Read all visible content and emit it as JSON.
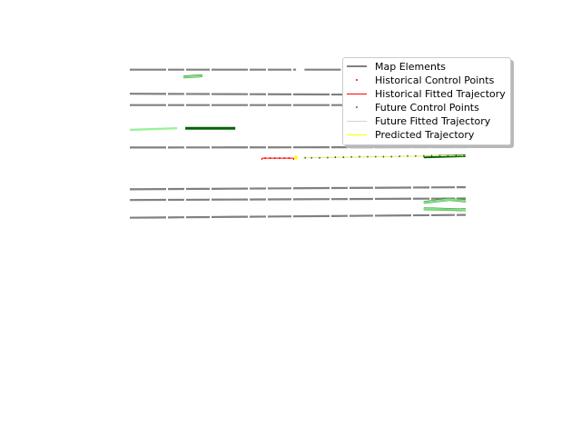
{
  "chart_data": {
    "type": "scatter",
    "title": "",
    "xlabel": "",
    "ylabel": "",
    "axes_visible": false,
    "xlim": [
      0,
      100
    ],
    "ylim": [
      0,
      100
    ],
    "grid": false,
    "legend": {
      "placement": "top-right",
      "entries": [
        {
          "label": "Map Elements",
          "marker": "line",
          "color": "#808080"
        },
        {
          "label": "Historical Control Points",
          "marker": "point",
          "color": "#ff0000"
        },
        {
          "label": "Historical Fitted Trajectory",
          "marker": "line",
          "color": "#ff0000"
        },
        {
          "label": "Future Control Points",
          "marker": "point",
          "color": "#1f77b4"
        },
        {
          "label": "Future Fitted Trajectory",
          "marker": "line",
          "color": "#d3d3d3"
        },
        {
          "label": "Predicted Trajectory",
          "marker": "line",
          "color": "#ffff00"
        }
      ]
    },
    "map_elements": [
      {
        "color": "#808080",
        "dashed": true,
        "points": [
          [
            0,
            98.9
          ],
          [
            49.5,
            98.9
          ]
        ]
      },
      {
        "color": "#808080",
        "dashed": true,
        "points": [
          [
            52,
            98.9
          ],
          [
            100,
            98.9
          ]
        ]
      },
      {
        "color": "#808080",
        "dashed": true,
        "points": [
          [
            0,
            91
          ],
          [
            100,
            90.6
          ]
        ]
      },
      {
        "color": "#808080",
        "dashed": true,
        "points": [
          [
            0,
            87.3
          ],
          [
            100,
            87.3
          ]
        ]
      },
      {
        "color": "#808080",
        "dashed": true,
        "points": [
          [
            0,
            73.4
          ],
          [
            100,
            73.5
          ]
        ]
      },
      {
        "color": "#808080",
        "dashed": true,
        "points": [
          [
            0,
            59.7
          ],
          [
            100,
            60.4
          ]
        ]
      },
      {
        "color": "#808080",
        "dashed": true,
        "points": [
          [
            0,
            56.2
          ],
          [
            100,
            56.7
          ]
        ]
      },
      {
        "color": "#808080",
        "dashed": true,
        "points": [
          [
            0,
            50.4
          ],
          [
            100,
            51.3
          ]
        ]
      },
      {
        "color": "#006400",
        "dashed": false,
        "points": [
          [
            16,
            96.5
          ],
          [
            21.6,
            96.9
          ]
        ]
      },
      {
        "color": "#90ee90",
        "dashed": false,
        "points": [
          [
            16,
            96.5
          ],
          [
            21.6,
            96.9
          ]
        ]
      },
      {
        "color": "#006400",
        "dashed": false,
        "points": [
          [
            16.5,
            79.7
          ],
          [
            31.4,
            79.7
          ]
        ]
      },
      {
        "color": "#90ee90",
        "dashed": false,
        "points": [
          [
            0,
            79.2
          ],
          [
            14.1,
            79.7
          ]
        ]
      },
      {
        "color": "#006400",
        "dashed": false,
        "points": [
          [
            80,
            80
          ],
          [
            100,
            80
          ]
        ]
      },
      {
        "color": "#006400",
        "dashed": false,
        "points": [
          [
            87.5,
            70.3
          ],
          [
            100,
            70.7
          ]
        ]
      },
      {
        "color": "#006400",
        "dashed": false,
        "points": [
          [
            87.5,
            55.4
          ],
          [
            95.1,
            56.4
          ],
          [
            100,
            55.9
          ]
        ]
      },
      {
        "color": "#90ee90",
        "dashed": false,
        "points": [
          [
            87.5,
            55.4
          ],
          [
            95.1,
            56.4
          ],
          [
            100,
            55.9
          ]
        ]
      },
      {
        "color": "#006400",
        "dashed": false,
        "points": [
          [
            87.5,
            53.3
          ],
          [
            100,
            53
          ]
        ]
      },
      {
        "color": "#90ee90",
        "dashed": false,
        "points": [
          [
            87.5,
            53.3
          ],
          [
            100,
            53
          ]
        ]
      }
    ],
    "historical_control_points": [
      [
        40.3,
        69.9
      ],
      [
        41.8,
        69.9
      ],
      [
        43.2,
        69.9
      ],
      [
        44.6,
        69.9
      ],
      [
        46,
        69.9
      ],
      [
        47.4,
        69.9
      ]
    ],
    "historical_fitted_trajectory": [
      [
        39.3,
        69.9
      ],
      [
        48.8,
        69.9
      ]
    ],
    "current_position": [
      49.5,
      70.1
    ],
    "future_control_points": [
      [
        52.2,
        70.0
      ],
      [
        54.1,
        70.0
      ],
      [
        56.5,
        70.0
      ],
      [
        58.9,
        70.1
      ],
      [
        61.2,
        70.2
      ],
      [
        63.6,
        70.2
      ],
      [
        66.0,
        70.3
      ],
      [
        68.4,
        70.4
      ],
      [
        70.8,
        70.4
      ],
      [
        73.2,
        70.4
      ],
      [
        75.5,
        70.4
      ],
      [
        77.9,
        70.4
      ],
      [
        80.3,
        70.5
      ],
      [
        82.7,
        70.6
      ],
      [
        85.1,
        70.6
      ],
      [
        87.5,
        70.6
      ],
      [
        89.9,
        70.7
      ],
      [
        92.3,
        70.7
      ],
      [
        94.7,
        70.7
      ],
      [
        97.1,
        70.8
      ],
      [
        99.5,
        70.8
      ]
    ],
    "future_fitted_trajectory": [
      [
        51.6,
        70.0
      ],
      [
        100,
        70.8
      ]
    ],
    "predicted_trajectory": [
      [
        51.6,
        70.0
      ],
      [
        100,
        70.8
      ]
    ]
  }
}
